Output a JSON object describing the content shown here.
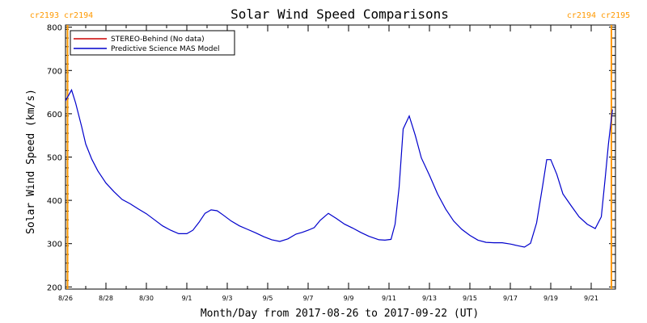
{
  "chart_data": {
    "type": "line",
    "title": "Solar Wind Speed Comparisons",
    "xlabel": "Month/Day from 2017-08-26 to 2017-09-22 (UT)",
    "ylabel": "Solar Wind Speed (km/s)",
    "ylim": [
      195,
      805
    ],
    "xlim_days": [
      0,
      27.2
    ],
    "yticks": [
      200,
      300,
      400,
      500,
      600,
      700,
      800
    ],
    "xtick_labels": [
      {
        "day": 0,
        "label": "8/26"
      },
      {
        "day": 2,
        "label": "8/28"
      },
      {
        "day": 4,
        "label": "8/30"
      },
      {
        "day": 6,
        "label": "9/1"
      },
      {
        "day": 8,
        "label": "9/3"
      },
      {
        "day": 10,
        "label": "9/5"
      },
      {
        "day": 12,
        "label": "9/7"
      },
      {
        "day": 14,
        "label": "9/9"
      },
      {
        "day": 16,
        "label": "9/11"
      },
      {
        "day": 18,
        "label": "9/13"
      },
      {
        "day": 20,
        "label": "9/15"
      },
      {
        "day": 22,
        "label": "9/17"
      },
      {
        "day": 24,
        "label": "9/19"
      },
      {
        "day": 26,
        "label": "9/21"
      }
    ],
    "carrington_markers": [
      {
        "day": 0.1,
        "label": "cr2193 cr2194",
        "side": "left"
      },
      {
        "day": 27.0,
        "label": "cr2194 cr2195",
        "side": "right"
      }
    ],
    "marker_color": "#ff9900",
    "legend": {
      "placement": "top-left"
    },
    "series": [
      {
        "name": "STEREO-Behind (No data)",
        "color": "#cc0000",
        "x": [],
        "y": []
      },
      {
        "name": "Predictive Science MAS Model",
        "color": "#0000cc",
        "x": [
          0,
          0.3,
          0.5,
          0.8,
          1.0,
          1.3,
          1.6,
          2.0,
          2.4,
          2.8,
          3.2,
          3.6,
          4.0,
          4.4,
          4.8,
          5.2,
          5.6,
          6.0,
          6.3,
          6.6,
          6.9,
          7.2,
          7.5,
          7.8,
          8.2,
          8.6,
          9.0,
          9.4,
          9.8,
          10.2,
          10.6,
          11.0,
          11.4,
          11.7,
          12.0,
          12.3,
          12.6,
          13.0,
          13.4,
          13.8,
          14.2,
          14.6,
          15.0,
          15.5,
          15.8,
          16.1,
          16.3,
          16.5,
          16.7,
          17.0,
          17.3,
          17.6,
          18.0,
          18.4,
          18.8,
          19.2,
          19.6,
          20.0,
          20.4,
          20.8,
          21.2,
          21.6,
          22.0,
          22.4,
          22.7,
          23.0,
          23.3,
          23.6,
          23.8,
          24.0,
          24.3,
          24.6,
          25.0,
          25.4,
          25.8,
          26.2,
          26.5,
          26.7,
          26.85,
          27.05
        ],
        "y": [
          630,
          655,
          625,
          570,
          530,
          495,
          468,
          440,
          420,
          402,
          392,
          380,
          369,
          355,
          341,
          331,
          323,
          323,
          331,
          349,
          370,
          378,
          376,
          366,
          352,
          341,
          333,
          325,
          316,
          309,
          305,
          311,
          322,
          326,
          331,
          337,
          354,
          370,
          358,
          345,
          336,
          326,
          317,
          309,
          308,
          310,
          345,
          430,
          565,
          595,
          550,
          498,
          458,
          415,
          380,
          352,
          333,
          319,
          308,
          303,
          302,
          302,
          299,
          295,
          292,
          301,
          348,
          434,
          494,
          494,
          460,
          415,
          388,
          362,
          345,
          335,
          362,
          455,
          530,
          610
        ]
      }
    ]
  }
}
